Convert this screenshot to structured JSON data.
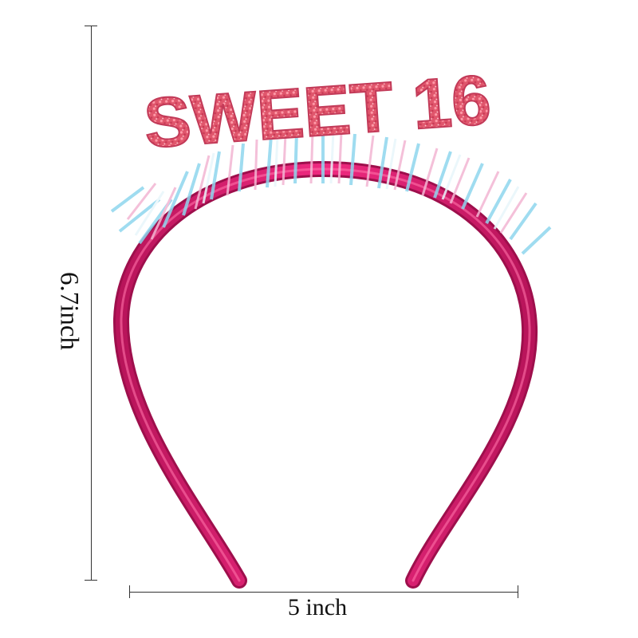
{
  "product": {
    "lettering": "SWEET 16",
    "colors": {
      "band": "#e91e73",
      "band_dark": "#b8145a",
      "glitter": "#e86a7a",
      "glitter_light": "#ff9aa8",
      "tinsel_blue": "#8fd6ee",
      "tinsel_pink": "#f3b6d3",
      "tinsel_white": "#e8f6fb"
    }
  },
  "dimensions": {
    "height_label": "6.7inch",
    "width_label": "5 inch",
    "line_color": "#333333"
  }
}
